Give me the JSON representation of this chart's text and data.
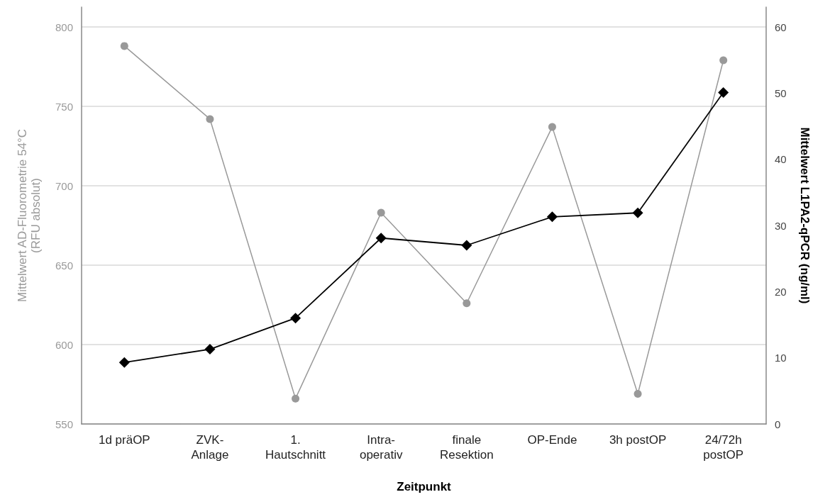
{
  "chart_data": {
    "type": "line",
    "xlabel": "Zeitpunkt",
    "ylabel": "Mittelwert AD-Fluorometrie 54°C\n(RFU absolut)",
    "y2label": "Mittelwert L1PA2-qPCR (ng/ml)",
    "categories": [
      "1d präOP",
      "ZVK-\nAnlage",
      "1.\nHautschnitt",
      "Intra-\noperativ",
      "finale\nResektion",
      "OP-Ende",
      "3h postOP",
      "24/72h\npostOP"
    ],
    "series": [
      {
        "color": "#999999",
        "marker": "circle",
        "values": [
          788,
          742,
          566,
          683,
          626,
          737,
          569,
          779
        ]
      },
      {
        "color": "#000000",
        "marker": "diamond",
        "axis": "y2",
        "values": [
          9.3,
          11.3,
          16.0,
          28.1,
          27.0,
          31.3,
          31.9,
          50.1
        ]
      }
    ],
    "ylim": [
      550,
      812.5
    ],
    "yticks": [
      550,
      600,
      650,
      700,
      750,
      800
    ],
    "y2lim": [
      0,
      63
    ],
    "y2ticks": [
      0,
      10,
      20,
      30,
      40,
      50,
      60
    ],
    "grid": "y",
    "line_style": "solid"
  }
}
